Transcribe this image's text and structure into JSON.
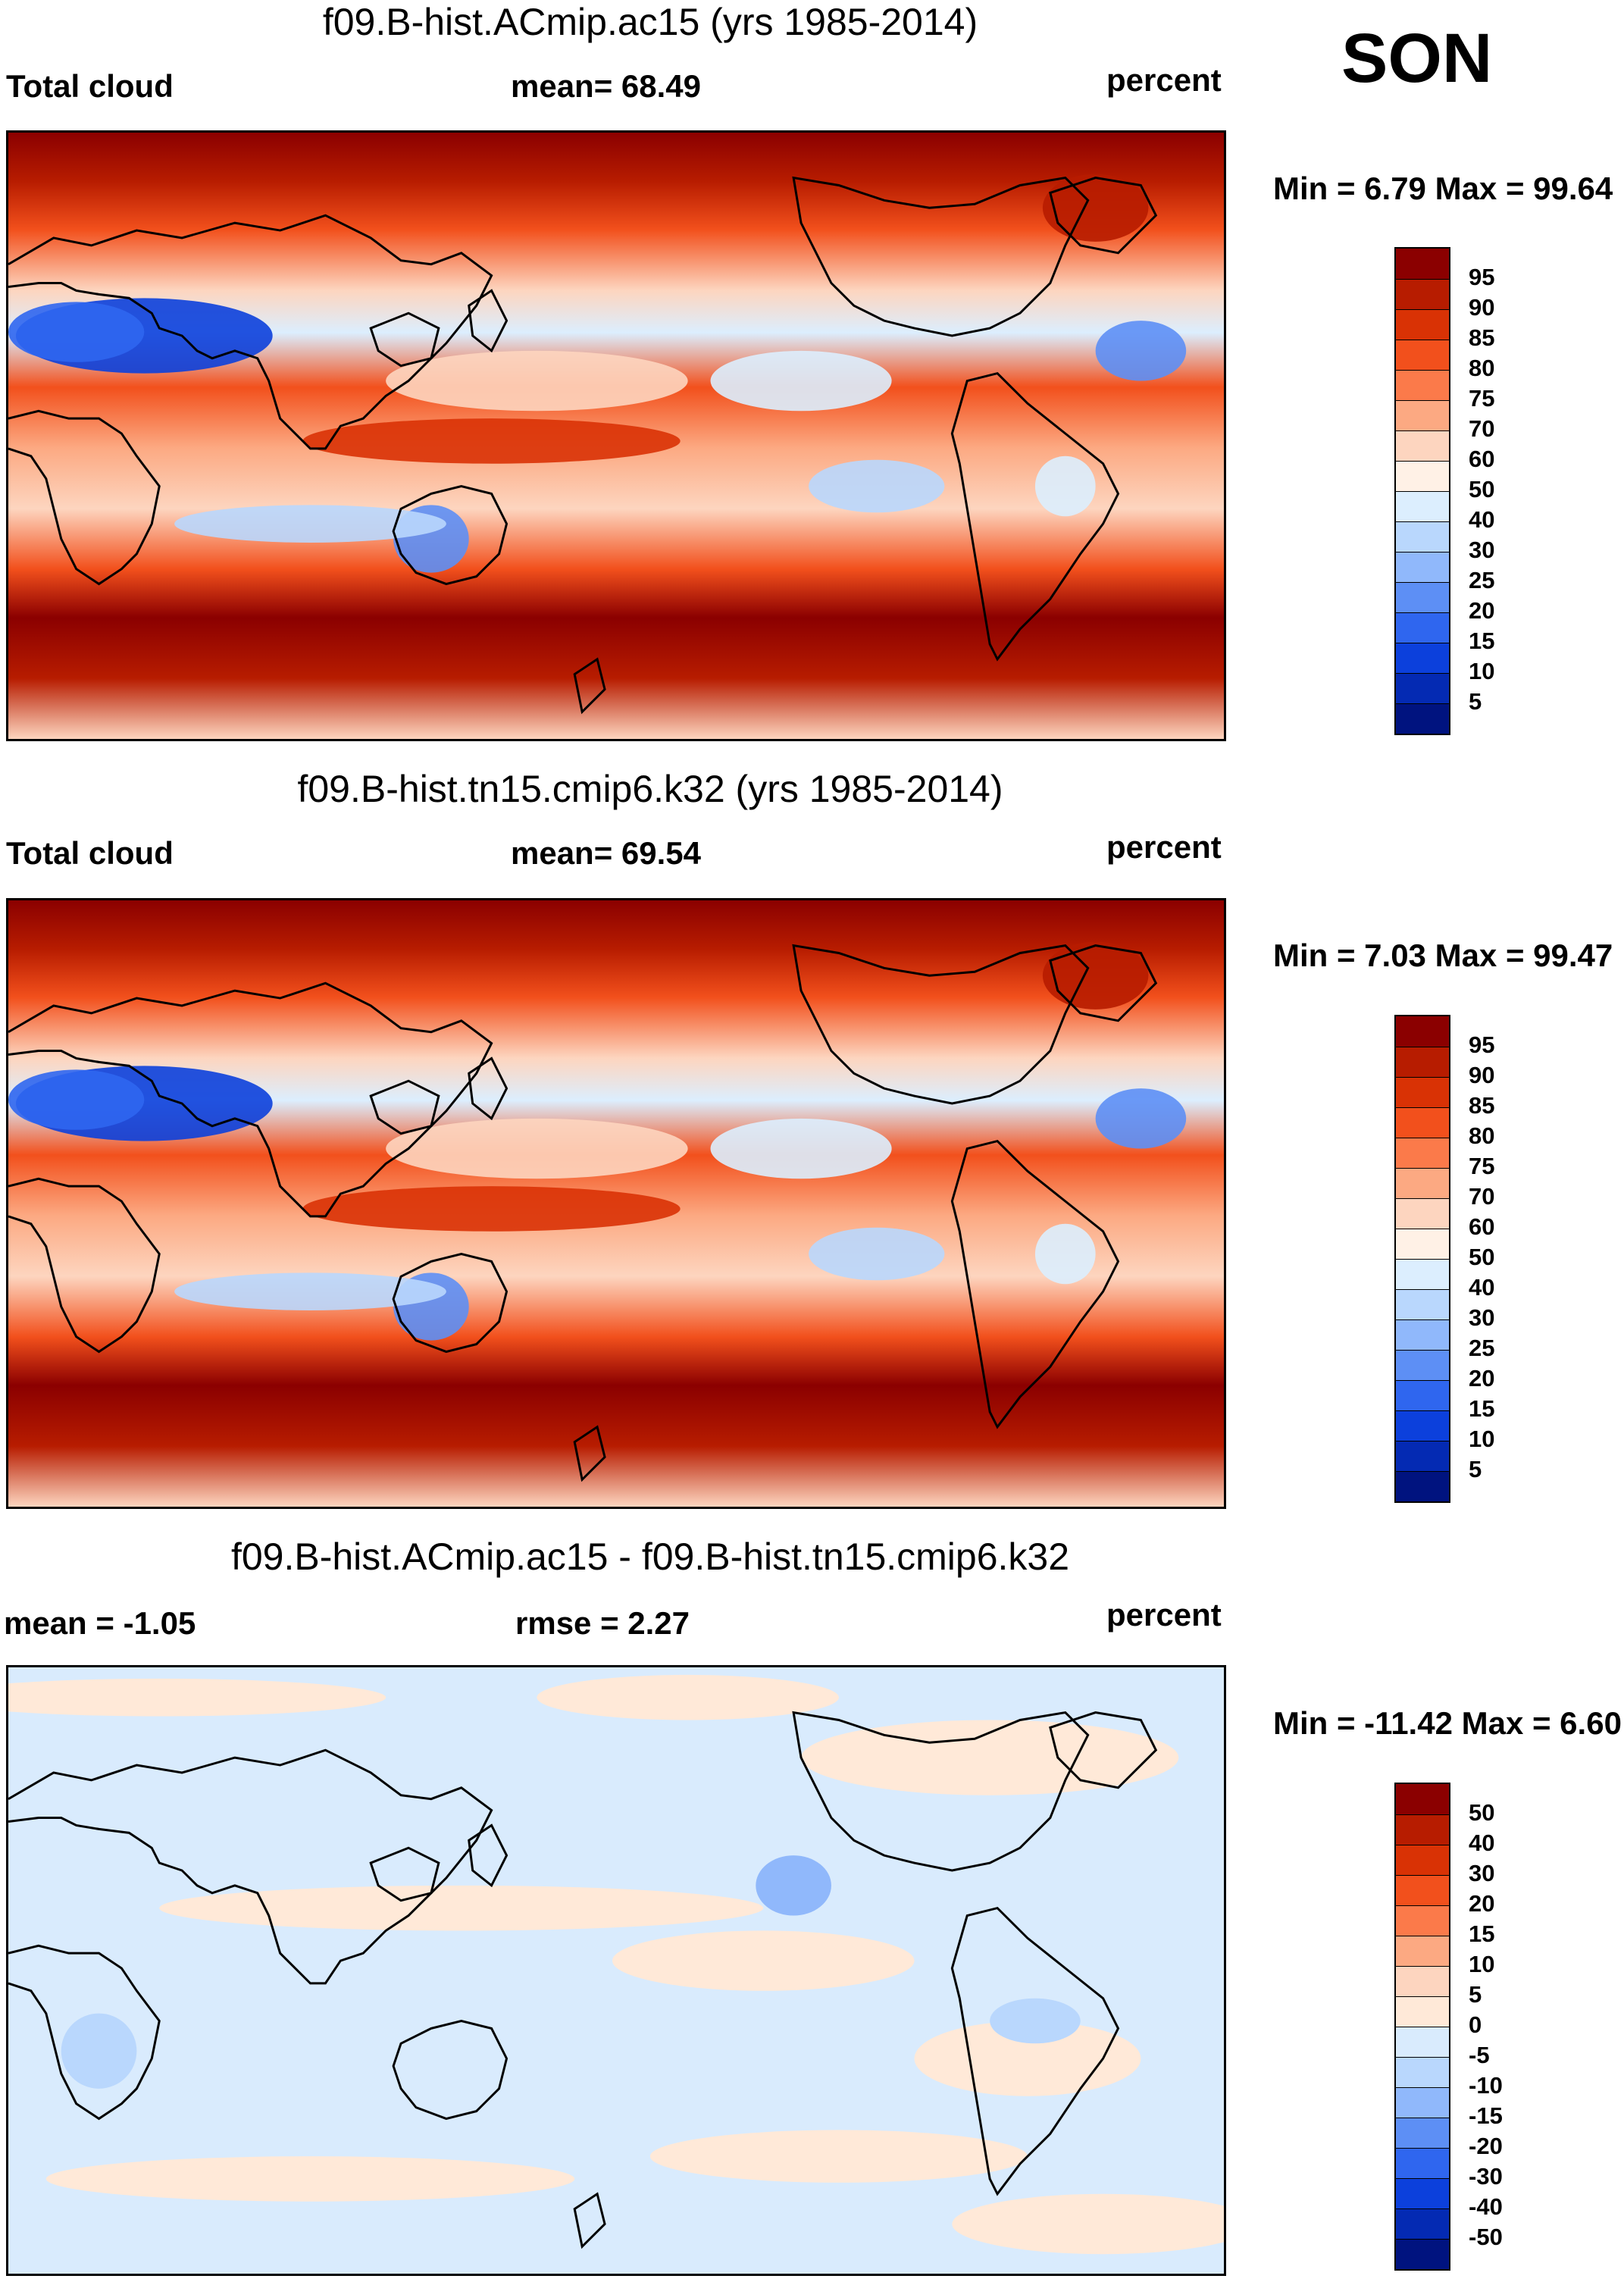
{
  "season": "SON",
  "panels": [
    {
      "title": "f09.B-hist.ACmip.ac15 (yrs 1985-2014)",
      "left_label": "Total cloud",
      "center_label": "mean=  68.49",
      "right_label": "percent",
      "minmax": "Min =    6.79 Max =  99.64",
      "kind": "abs",
      "ticks": [
        "95",
        "90",
        "85",
        "80",
        "75",
        "70",
        "60",
        "50",
        "40",
        "30",
        "25",
        "20",
        "15",
        "10",
        "5"
      ],
      "colors": [
        "#8b0000",
        "#b71c00",
        "#d93205",
        "#f2501c",
        "#fb7a4a",
        "#fca982",
        "#fdd5bf",
        "#fff1e6",
        "#dceefe",
        "#b9d7fd",
        "#90b8fb",
        "#5d8ff5",
        "#2f66ef",
        "#0c40dc",
        "#042ab3",
        "#00137f"
      ]
    },
    {
      "title": "f09.B-hist.tn15.cmip6.k32 (yrs 1985-2014)",
      "left_label": "Total cloud",
      "center_label": "mean=  69.54",
      "right_label": "percent",
      "minmax": "Min =    7.03 Max =  99.47",
      "kind": "abs",
      "ticks": [
        "95",
        "90",
        "85",
        "80",
        "75",
        "70",
        "60",
        "50",
        "40",
        "30",
        "25",
        "20",
        "15",
        "10",
        "5"
      ],
      "colors": [
        "#8b0000",
        "#b71c00",
        "#d93205",
        "#f2501c",
        "#fb7a4a",
        "#fca982",
        "#fdd5bf",
        "#fff1e6",
        "#dceefe",
        "#b9d7fd",
        "#90b8fb",
        "#5d8ff5",
        "#2f66ef",
        "#0c40dc",
        "#042ab3",
        "#00137f"
      ]
    },
    {
      "title": "f09.B-hist.ACmip.ac15 - f09.B-hist.tn15.cmip6.k32",
      "left_label": "mean =  -1.05",
      "center_label": "rmse =    2.27",
      "right_label": "percent",
      "minmax": "Min = -11.42 Max =    6.60",
      "kind": "diff",
      "ticks": [
        "50",
        "40",
        "30",
        "20",
        "15",
        "10",
        "5",
        "0",
        "-5",
        "-10",
        "-15",
        "-20",
        "-30",
        "-40",
        "-50"
      ],
      "colors": [
        "#8b0000",
        "#b71c00",
        "#d93205",
        "#f2501c",
        "#fb7a4a",
        "#fca982",
        "#fdd5bf",
        "#ffe9d8",
        "#d9ebfd",
        "#b9d7fd",
        "#90b8fb",
        "#5d8ff5",
        "#2f66ef",
        "#0c40dc",
        "#042ab3",
        "#00137f"
      ]
    }
  ]
}
